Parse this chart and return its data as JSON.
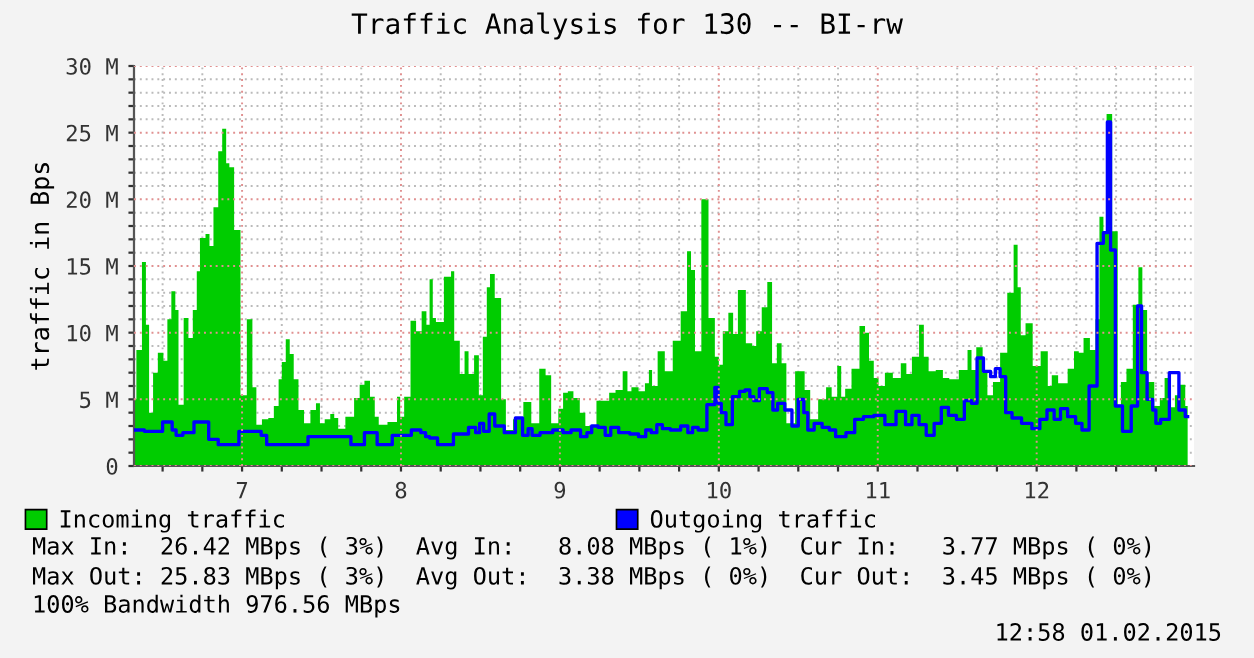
{
  "chart_data": {
    "type": "area",
    "title": "Traffic Analysis for 130 -- BI-rw",
    "ylabel": "traffic in Bps",
    "xlim": [
      6.32,
      12.99
    ],
    "ylim": [
      0,
      30
    ],
    "xticks": [
      {
        "value": 6.5,
        "label": null
      },
      {
        "value": 6.75,
        "label": null
      },
      7,
      {
        "value": 7.25,
        "label": null
      },
      {
        "value": 7.5,
        "label": null
      },
      {
        "value": 7.75,
        "label": null
      },
      8,
      {
        "value": 8.25,
        "label": null
      },
      {
        "value": 8.5,
        "label": null
      },
      {
        "value": 8.75,
        "label": null
      },
      9,
      {
        "value": 9.25,
        "label": null
      },
      {
        "value": 9.5,
        "label": null
      },
      {
        "value": 9.75,
        "label": null
      },
      10,
      {
        "value": 10.25,
        "label": null
      },
      {
        "value": 10.5,
        "label": null
      },
      {
        "value": 10.75,
        "label": null
      },
      11,
      {
        "value": 11.25,
        "label": null
      },
      {
        "value": 11.5,
        "label": null
      },
      {
        "value": 11.75,
        "label": null
      },
      12,
      {
        "value": 12.25,
        "label": null
      },
      {
        "value": 12.5,
        "label": null
      },
      {
        "value": 12.75,
        "label": null
      }
    ],
    "yticks": [
      0,
      {
        "value": 1,
        "label": null
      },
      {
        "value": 2,
        "label": null
      },
      {
        "value": 3,
        "label": null
      },
      {
        "value": 4,
        "label": null
      },
      {
        "value": 5,
        "label": "5 M"
      },
      {
        "value": 6,
        "label": null
      },
      {
        "value": 7,
        "label": null
      },
      {
        "value": 8,
        "label": null
      },
      {
        "value": 9,
        "label": null
      },
      {
        "value": 10,
        "label": "10 M"
      },
      {
        "value": 11,
        "label": null
      },
      {
        "value": 12,
        "label": null
      },
      {
        "value": 13,
        "label": null
      },
      {
        "value": 14,
        "label": null
      },
      {
        "value": 15,
        "label": "15 M"
      },
      {
        "value": 16,
        "label": null
      },
      {
        "value": 17,
        "label": null
      },
      {
        "value": 18,
        "label": null
      },
      {
        "value": 19,
        "label": null
      },
      {
        "value": 20,
        "label": "20 M"
      },
      {
        "value": 21,
        "label": null
      },
      {
        "value": 22,
        "label": null
      },
      {
        "value": 23,
        "label": null
      },
      {
        "value": 24,
        "label": null
      },
      {
        "value": 25,
        "label": "25 M"
      },
      {
        "value": 26,
        "label": null
      },
      {
        "value": 27,
        "label": null
      },
      {
        "value": 28,
        "label": null
      },
      {
        "value": 29,
        "label": null
      },
      {
        "value": 30,
        "label": "30 M"
      }
    ],
    "grid": true,
    "legend": "bottom",
    "series": [
      {
        "name": "Incoming traffic",
        "color": "#00cc00",
        "x": [
          6.32,
          6.35,
          6.39,
          6.4,
          6.43,
          6.45,
          6.49,
          6.52,
          6.54,
          6.57,
          6.59,
          6.61,
          6.655,
          6.67,
          6.71,
          6.72,
          6.75,
          6.79,
          6.8,
          6.84,
          6.86,
          6.89,
          6.91,
          6.93,
          6.97,
          7.01,
          7.05,
          7.08,
          7.1,
          7.15,
          7.18,
          7.22,
          7.24,
          7.26,
          7.29,
          7.31,
          7.34,
          7.37,
          7.41,
          7.45,
          7.48,
          7.5,
          7.54,
          7.57,
          7.59,
          7.62,
          7.68,
          7.73,
          7.75,
          7.79,
          7.82,
          7.85,
          7.87,
          7.96,
          7.99,
          8.0,
          8.04,
          8.08,
          8.11,
          8.15,
          8.17,
          8.19,
          8.21,
          8.23,
          8.31,
          8.32,
          8.35,
          8.39,
          8.41,
          8.44,
          8.48,
          8.5,
          8.53,
          8.55,
          8.57,
          8.61,
          8.65,
          8.67,
          8.74,
          8.8,
          8.84,
          8.9,
          8.92,
          8.97,
          9.01,
          9.03,
          9.07,
          9.1,
          9.15,
          9.17,
          9.29,
          9.33,
          9.37,
          9.42,
          9.43,
          9.47,
          9.52,
          9.55,
          9.57,
          9.59,
          9.64,
          9.68,
          9.74,
          9.78,
          9.82,
          9.83,
          9.87,
          9.91,
          9.96,
          9.99,
          10.01,
          10.04,
          10.08,
          10.1,
          10.14,
          10.2,
          10.22,
          10.25,
          10.29,
          10.32,
          10.35,
          10.38,
          10.41,
          10.44,
          10.52,
          10.56,
          10.59,
          10.66,
          10.69,
          10.73,
          10.76,
          10.78,
          10.81,
          10.86,
          10.91,
          10.93,
          10.96,
          10.99,
          11.02,
          11.07,
          11.12,
          11.17,
          11.19,
          11.24,
          11.28,
          11.3,
          11.34,
          11.39,
          11.43,
          11.47,
          11.55,
          11.58,
          11.6,
          11.64,
          11.68,
          11.7,
          11.75,
          11.79,
          11.84,
          11.87,
          11.89,
          11.91,
          11.95,
          12.0,
          12.05,
          12.09,
          12.1,
          12.17,
          12.22,
          12.25,
          12.28,
          12.31,
          12.36,
          12.38,
          12.41,
          12.43,
          12.45,
          12.5,
          12.52,
          12.54,
          12.59,
          12.62,
          12.66,
          12.67,
          12.72,
          12.76,
          12.79,
          12.82,
          12.86,
          12.88,
          12.92,
          12.95
        ],
        "values": [
          5.0,
          8.7,
          15.3,
          10.6,
          4.0,
          7.0,
          8.5,
          7.9,
          11.0,
          13.1,
          11.7,
          4.6,
          11.1,
          9.6,
          11.7,
          14.6,
          17.1,
          17.4,
          16.5,
          19.4,
          23.6,
          25.3,
          22.7,
          22.4,
          17.7,
          5.3,
          11.0,
          5.9,
          3.1,
          3.5,
          3.6,
          4.5,
          6.5,
          7.8,
          9.5,
          8.4,
          6.5,
          4.2,
          3.2,
          4.2,
          4.7,
          3.2,
          3.5,
          3.9,
          3.6,
          2.8,
          3.7,
          5.1,
          6.1,
          6.4,
          5.2,
          3.7,
          3.1,
          3.3,
          5.2,
          3.7,
          5.2,
          10.9,
          10.1,
          11.6,
          10.6,
          14.0,
          11.1,
          10.8,
          14.2,
          14.6,
          9.4,
          6.9,
          8.6,
          6.9,
          8.3,
          5.3,
          9.7,
          13.4,
          14.4,
          12.6,
          5.0,
          2.7,
          3.5,
          4.8,
          3.2,
          7.3,
          6.8,
          3.2,
          4.3,
          5.5,
          5.6,
          5.1,
          4.0,
          3.0,
          4.9,
          5.5,
          5.7,
          7.1,
          5.6,
          5.9,
          5.6,
          6.2,
          7.2,
          6.0,
          8.6,
          7.1,
          9.4,
          11.6,
          16.1,
          14.7,
          8.6,
          20.0,
          11.1,
          8.2,
          7.6,
          10.1,
          11.5,
          9.9,
          13.2,
          9.2,
          9.0,
          10.1,
          11.9,
          13.8,
          7.7,
          9.2,
          7.7,
          3.2,
          7.1,
          5.7,
          3.5,
          5.0,
          5.9,
          5.2,
          7.5,
          5.2,
          5.8,
          7.3,
          10.5,
          10.0,
          7.9,
          6.6,
          6.0,
          7.0,
          6.6,
          7.7,
          6.9,
          8.2,
          10.6,
          8.2,
          7.1,
          7.2,
          6.6,
          6.5,
          7.2,
          8.7,
          7.2,
          8.9,
          7.0,
          5.3,
          6.3,
          8.5,
          13.0,
          16.6,
          13.4,
          9.8,
          10.7,
          7.5,
          8.6,
          6.0,
          6.8,
          6.2,
          7.3,
          8.6,
          8.5,
          9.6,
          8.7,
          11.0,
          18.7,
          17.6,
          26.4,
          17.6,
          4.6,
          6.3,
          7.3,
          12.1,
          14.9,
          11.7,
          6.3,
          4.5,
          5.1,
          6.6,
          4.4,
          5.3,
          6.1,
          4.5
        ]
      },
      {
        "name": "Outgoing traffic",
        "type": "step",
        "color": "#0000ff",
        "x": [
          6.32,
          6.45,
          6.55,
          6.57,
          6.6,
          6.655,
          6.74,
          6.84,
          6.86,
          7.1,
          7.14,
          7.17,
          7.66,
          7.71,
          7.83,
          7.87,
          8.02,
          8.11,
          8.14,
          8.17,
          8.19,
          8.27,
          8.39,
          8.46,
          8.48,
          8.51,
          8.53,
          8.58,
          8.6,
          8.7,
          8.74,
          8.79,
          8.81,
          8.84,
          8.91,
          9.0,
          9.04,
          9.1,
          9.16,
          9.18,
          9.22,
          9.26,
          9.31,
          9.33,
          9.41,
          9.47,
          9.52,
          9.56,
          9.59,
          9.63,
          9.66,
          9.73,
          9.79,
          9.82,
          9.85,
          9.89,
          9.96,
          9.99,
          10.0,
          10.03,
          10.06,
          10.11,
          10.15,
          10.18,
          10.21,
          10.23,
          10.28,
          10.33,
          10.35,
          10.39,
          10.44,
          10.48,
          10.52,
          10.55,
          10.57,
          10.63,
          10.67,
          10.72,
          10.75,
          10.78,
          10.82,
          10.89,
          10.93,
          11.02,
          11.07,
          11.16,
          11.19,
          11.24,
          11.28,
          11.33,
          11.38,
          11.42,
          11.47,
          11.52,
          11.57,
          11.61,
          11.64,
          11.69,
          11.73,
          11.75,
          11.79,
          11.82,
          11.87,
          11.94,
          12.0,
          12.04,
          12.09,
          12.13,
          12.17,
          12.22,
          12.27,
          12.3,
          12.36,
          12.4,
          12.44,
          12.45,
          12.48,
          12.51,
          12.57,
          12.62,
          12.65,
          12.67,
          12.72,
          12.74,
          12.76,
          12.8,
          12.87,
          12.92,
          12.95
        ],
        "values": [
          2.7,
          2.6,
          3.3,
          2.7,
          2.3,
          2.5,
          3.3,
          2.0,
          1.6,
          2.6,
          2.3,
          1.6,
          2.2,
          1.6,
          2.5,
          1.6,
          2.3,
          2.7,
          2.5,
          2.2,
          2.1,
          1.6,
          2.4,
          2.9,
          2.5,
          3.2,
          2.6,
          3.9,
          3.0,
          2.5,
          3.6,
          2.3,
          2.8,
          2.3,
          2.5,
          2.7,
          2.5,
          2.7,
          2.2,
          2.5,
          3.0,
          2.9,
          2.3,
          2.9,
          2.5,
          2.4,
          2.2,
          2.7,
          2.5,
          3.1,
          2.8,
          2.7,
          3.0,
          2.5,
          2.9,
          2.7,
          4.6,
          5.9,
          4.7,
          4.0,
          3.1,
          5.2,
          5.6,
          5.7,
          5.2,
          4.9,
          5.8,
          5.5,
          4.2,
          4.7,
          4.2,
          3.0,
          5.0,
          4.0,
          2.7,
          3.2,
          2.9,
          2.7,
          2.2,
          2.2,
          2.5,
          3.5,
          3.7,
          3.8,
          3.1,
          4.1,
          3.1,
          3.8,
          3.1,
          2.3,
          3.2,
          4.4,
          3.8,
          3.5,
          4.9,
          4.7,
          8.1,
          7.1,
          6.7,
          7.3,
          6.7,
          4.0,
          3.6,
          3.2,
          2.8,
          3.5,
          4.2,
          3.5,
          4.3,
          3.7,
          3.2,
          2.7,
          6.0,
          16.7,
          17.5,
          25.8,
          16.2,
          4.5,
          2.6,
          4.5,
          12.0,
          7.0,
          5.0,
          4.2,
          3.2,
          3.5,
          7.0,
          4.2,
          3.7
        ]
      }
    ],
    "annotations": [
      "Max In:  26.42 MBps ( 3%)  Avg In:   8.08 MBps ( 1%)  Cur In:   3.77 MBps ( 0%)",
      "Max Out: 25.83 MBps ( 3%)  Avg Out:  3.38 MBps ( 0%)  Cur Out:  3.45 MBps ( 0%)",
      "100% Bandwidth 976.56 MBps",
      "12:58 01.02.2015"
    ]
  }
}
